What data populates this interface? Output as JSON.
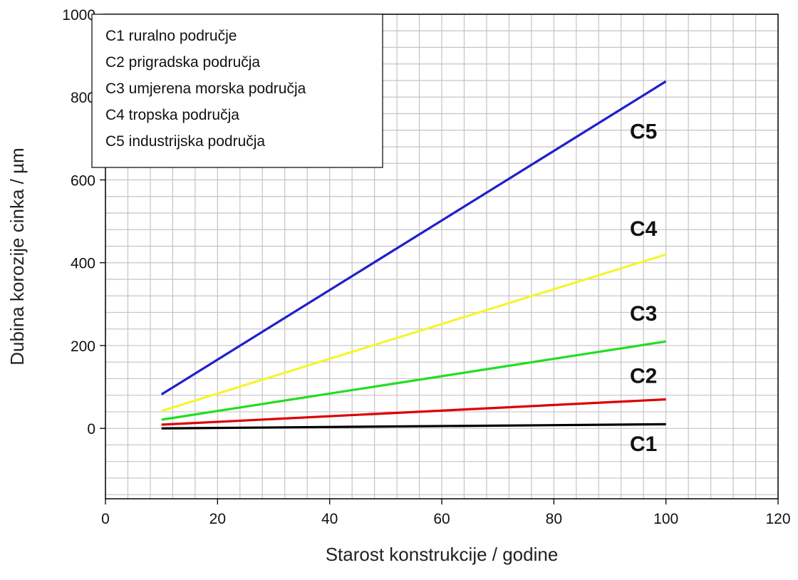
{
  "chart_data": {
    "type": "line",
    "title": "",
    "xlabel": "Starost konstrukcije / godine",
    "ylabel": "Dubina korozije cinka / µm",
    "xlim": [
      0,
      120
    ],
    "ylim": [
      -170,
      1000
    ],
    "x_ticks": [
      0,
      20,
      40,
      60,
      80,
      100,
      120
    ],
    "y_ticks": [
      0,
      200,
      400,
      600,
      800,
      1000
    ],
    "grid": true,
    "legend_placement": "top-left",
    "legend": [
      "C1 ruralno područje",
      "C2 prigradska područja",
      "C3 umjerena morska područja",
      "C4 tropska područja",
      "C5 industrijska područja"
    ],
    "series": [
      {
        "name": "C1",
        "color": "#000000",
        "x": [
          10,
          100
        ],
        "y": [
          0,
          10
        ],
        "label_pos": [
          96,
          -55
        ]
      },
      {
        "name": "C2",
        "color": "#dd0000",
        "x": [
          10,
          100
        ],
        "y": [
          9,
          70
        ],
        "label_pos": [
          96,
          110
        ]
      },
      {
        "name": "C3",
        "color": "#22dd22",
        "x": [
          10,
          100
        ],
        "y": [
          21,
          210
        ],
        "label_pos": [
          96,
          260
        ]
      },
      {
        "name": "C4",
        "color": "#f5f530",
        "x": [
          10,
          100
        ],
        "y": [
          42,
          420
        ],
        "label_pos": [
          96,
          465
        ]
      },
      {
        "name": "C5",
        "color": "#1f1fcc",
        "x": [
          10,
          100
        ],
        "y": [
          82,
          838
        ],
        "label_pos": [
          96,
          700
        ]
      }
    ]
  }
}
